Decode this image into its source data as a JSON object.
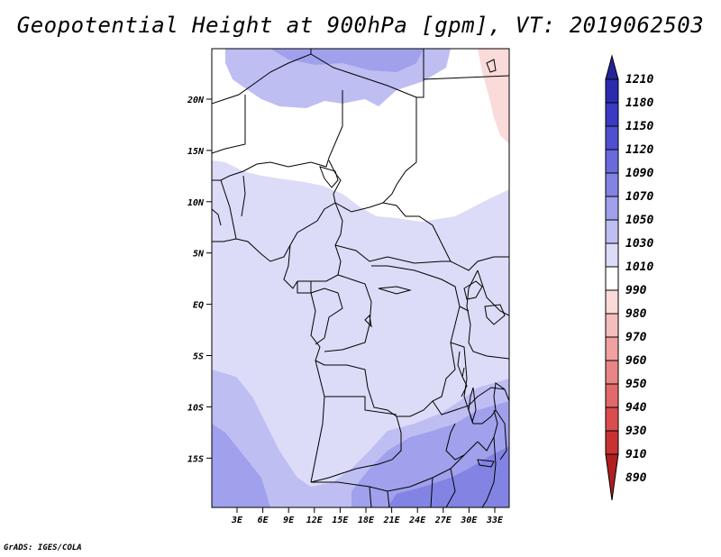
{
  "title": "Geopotential Height at 900hPa [gpm], VT: 2019062503",
  "credit": "GrADS: IGES/COLA",
  "map": {
    "lat_ticks": [
      "20N",
      "15N",
      "10N",
      "5N",
      "EQ",
      "5S",
      "10S",
      "15S"
    ],
    "lon_ticks": [
      "3E",
      "6E",
      "9E",
      "12E",
      "15E",
      "18E",
      "21E",
      "24E",
      "27E",
      "30E",
      "33E"
    ]
  },
  "colorbar": {
    "labels": [
      "1210",
      "1180",
      "1150",
      "1120",
      "1090",
      "1070",
      "1050",
      "1030",
      "1010",
      "990",
      "980",
      "970",
      "960",
      "950",
      "940",
      "930",
      "910",
      "890"
    ],
    "colors": [
      "#24249a",
      "#2b2bb0",
      "#3a3ac4",
      "#4f4fd2",
      "#6a6adc",
      "#8383e4",
      "#a0a0ec",
      "#bebef3",
      "#dcdcf8",
      "#ffffff",
      "#fbdada",
      "#f6bdbd",
      "#f0a2a2",
      "#e98585",
      "#e26a6a",
      "#da4d4d",
      "#c83232",
      "#b01e1e"
    ]
  }
}
